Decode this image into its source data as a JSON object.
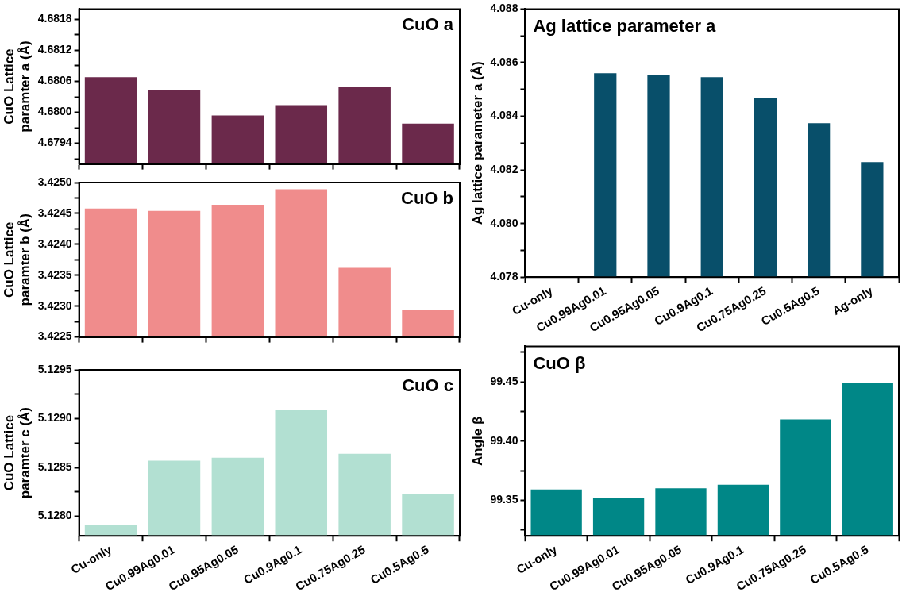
{
  "chart_data": [
    {
      "type": "bar",
      "title": "CuO a",
      "ylabel": "CuO Lattice paramter a (Å)",
      "categories": [
        null,
        null,
        null,
        null,
        null,
        null
      ],
      "values": [
        4.68068,
        4.68044,
        4.67994,
        4.68014,
        4.6805,
        4.67978
      ],
      "color": "#6b294b",
      "ylim": [
        4.679,
        4.682
      ],
      "yticks": [
        {
          "value": 4.6791,
          "label": null
        },
        4.6794,
        {
          "value": 4.6797,
          "label": null
        },
        {
          "value": 4.68,
          "label": "4.6800"
        },
        {
          "value": 4.6803,
          "label": null
        },
        4.6806,
        {
          "value": 4.6809,
          "label": null
        },
        4.6812,
        {
          "value": 4.6815,
          "label": null
        },
        4.6818
      ],
      "tick_labels": "y",
      "legend": false
    },
    {
      "type": "bar",
      "title": "CuO b",
      "ylabel": "CuO Lattice paramter b (Å)",
      "categories": [
        null,
        null,
        null,
        null,
        null,
        null
      ],
      "values": [
        3.42458,
        3.42454,
        3.42464,
        3.42489,
        3.42362,
        3.42294
      ],
      "color": "#f08c8c",
      "ylim": [
        3.4225,
        3.425
      ],
      "yticks": [
        3.4225,
        {
          "value": 3.42275,
          "label": null
        },
        {
          "value": 3.423,
          "label": "3.4230"
        },
        {
          "value": 3.42325,
          "label": null
        },
        3.4235,
        {
          "value": 3.42375,
          "label": null
        },
        {
          "value": 3.424,
          "label": "3.4240"
        },
        {
          "value": 3.42425,
          "label": null
        },
        3.4245,
        {
          "value": 3.42475,
          "label": null
        },
        {
          "value": 3.425,
          "label": "3.4250"
        }
      ],
      "tick_labels": "y",
      "legend": false
    },
    {
      "type": "bar",
      "title": "CuO c",
      "ylabel": "CuO Lattice paramter c (Å)",
      "categories": [
        "Cu-only",
        "Cu0.99Ag0.01",
        "Cu0.95Ag0.05",
        "Cu0.9Ag0.1",
        "Cu0.75Ag0.25",
        "Cu0.5Ag0.5"
      ],
      "values": [
        5.12791,
        5.12857,
        5.1286,
        5.12909,
        5.12864,
        5.12823
      ],
      "color": "#b2e0d2",
      "ylim": [
        5.1278,
        5.1295
      ],
      "yticks": [
        {
          "value": 5.128,
          "label": "5.1280"
        },
        {
          "value": 5.12825,
          "label": null
        },
        5.1285,
        {
          "value": 5.12875,
          "label": null
        },
        {
          "value": 5.129,
          "label": "5.1290"
        },
        {
          "value": 5.12925,
          "label": null
        },
        5.1295
      ],
      "legend": false
    },
    {
      "type": "bar",
      "title": "Ag lattice parameter a",
      "ylabel": "Ag lattice parameter a (Å)",
      "categories": [
        "Cu-only",
        "Cu0.99Ag0.01",
        "Cu0.95Ag0.05",
        "Cu0.9Ag0.1",
        "Cu0.75Ag0.25",
        "Cu0.5Ag0.5",
        "Ag-only"
      ],
      "values": [
        null,
        4.08561,
        4.08554,
        4.08546,
        4.08469,
        4.08374,
        4.08229
      ],
      "color": "#084f6a",
      "ylim": [
        4.078,
        4.088
      ],
      "yticks": [
        4.078,
        {
          "value": 4.079,
          "label": null
        },
        {
          "value": 4.08,
          "label": "4.080"
        },
        {
          "value": 4.081,
          "label": null
        },
        4.082,
        {
          "value": 4.083,
          "label": null
        },
        4.084,
        {
          "value": 4.085,
          "label": null
        },
        4.086,
        {
          "value": 4.087,
          "label": null
        },
        {
          "value": 4.088,
          "label": "4.088"
        }
      ],
      "legend": false
    },
    {
      "type": "bar",
      "title": "CuO β",
      "ylabel": "Angle β",
      "categories": [
        "Cu-only",
        "Cu0.99Ag0.01",
        "Cu0.95Ag0.05",
        "Cu0.9Ag0.1",
        "Cu0.75Ag0.25",
        "Cu0.5Ag0.5"
      ],
      "values": [
        99.3591,
        99.352,
        99.3601,
        99.3632,
        99.4183,
        99.4492
      ],
      "color": "#008787",
      "ylim": [
        99.32,
        99.48
      ],
      "yticks": [
        {
          "value": 99.325,
          "label": null
        },
        99.35,
        {
          "value": 99.375,
          "label": null
        },
        {
          "value": 99.4,
          "label": "99.40"
        },
        {
          "value": 99.425,
          "label": null
        },
        99.45,
        {
          "value": 99.475,
          "label": null
        }
      ],
      "legend": false
    }
  ]
}
